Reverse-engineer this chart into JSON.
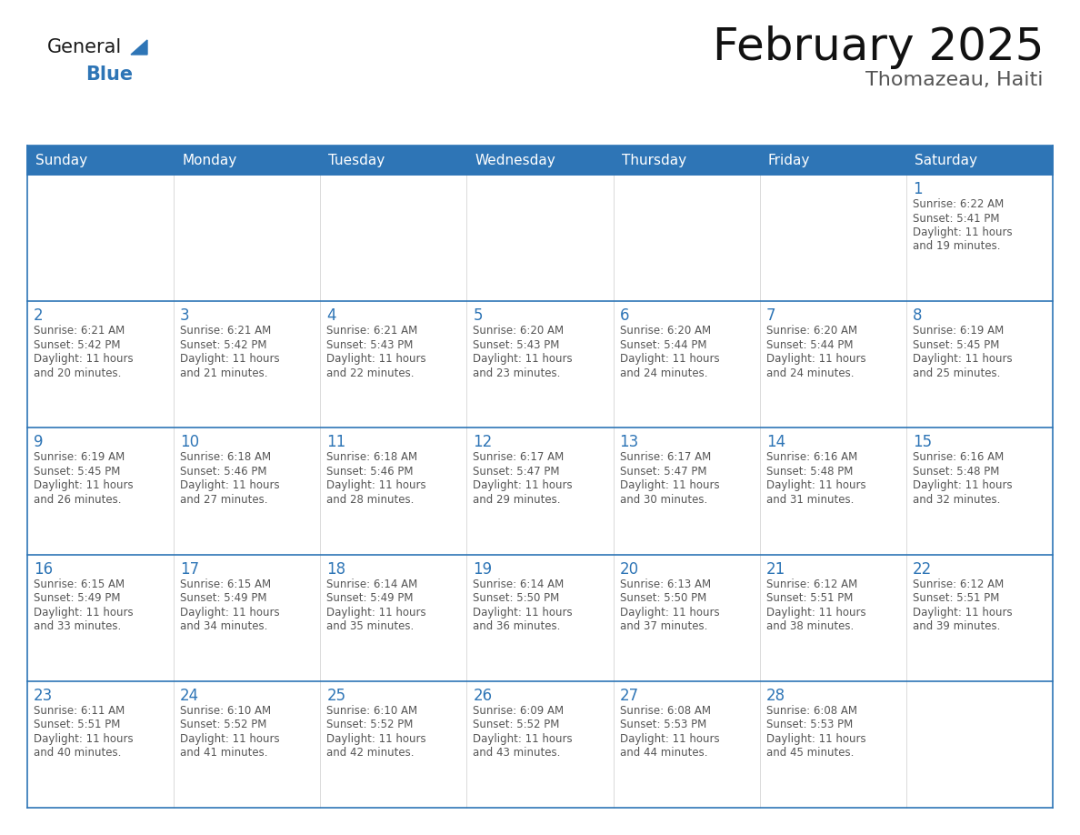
{
  "title": "February 2025",
  "subtitle": "Thomazeau, Haiti",
  "header_color": "#2E75B6",
  "header_text_color": "#FFFFFF",
  "border_color": "#2E75B6",
  "day_number_color": "#2E75B6",
  "info_text_color": "#555555",
  "days_of_week": [
    "Sunday",
    "Monday",
    "Tuesday",
    "Wednesday",
    "Thursday",
    "Friday",
    "Saturday"
  ],
  "logo_general_color": "#1a1a1a",
  "logo_blue_color": "#2E75B6",
  "calendar_data": [
    [
      null,
      null,
      null,
      null,
      null,
      null,
      {
        "day": 1,
        "sunrise": "6:22 AM",
        "sunset": "5:41 PM",
        "daylight_hours": 11,
        "daylight_minutes": 19
      }
    ],
    [
      {
        "day": 2,
        "sunrise": "6:21 AM",
        "sunset": "5:42 PM",
        "daylight_hours": 11,
        "daylight_minutes": 20
      },
      {
        "day": 3,
        "sunrise": "6:21 AM",
        "sunset": "5:42 PM",
        "daylight_hours": 11,
        "daylight_minutes": 21
      },
      {
        "day": 4,
        "sunrise": "6:21 AM",
        "sunset": "5:43 PM",
        "daylight_hours": 11,
        "daylight_minutes": 22
      },
      {
        "day": 5,
        "sunrise": "6:20 AM",
        "sunset": "5:43 PM",
        "daylight_hours": 11,
        "daylight_minutes": 23
      },
      {
        "day": 6,
        "sunrise": "6:20 AM",
        "sunset": "5:44 PM",
        "daylight_hours": 11,
        "daylight_minutes": 24
      },
      {
        "day": 7,
        "sunrise": "6:20 AM",
        "sunset": "5:44 PM",
        "daylight_hours": 11,
        "daylight_minutes": 24
      },
      {
        "day": 8,
        "sunrise": "6:19 AM",
        "sunset": "5:45 PM",
        "daylight_hours": 11,
        "daylight_minutes": 25
      }
    ],
    [
      {
        "day": 9,
        "sunrise": "6:19 AM",
        "sunset": "5:45 PM",
        "daylight_hours": 11,
        "daylight_minutes": 26
      },
      {
        "day": 10,
        "sunrise": "6:18 AM",
        "sunset": "5:46 PM",
        "daylight_hours": 11,
        "daylight_minutes": 27
      },
      {
        "day": 11,
        "sunrise": "6:18 AM",
        "sunset": "5:46 PM",
        "daylight_hours": 11,
        "daylight_minutes": 28
      },
      {
        "day": 12,
        "sunrise": "6:17 AM",
        "sunset": "5:47 PM",
        "daylight_hours": 11,
        "daylight_minutes": 29
      },
      {
        "day": 13,
        "sunrise": "6:17 AM",
        "sunset": "5:47 PM",
        "daylight_hours": 11,
        "daylight_minutes": 30
      },
      {
        "day": 14,
        "sunrise": "6:16 AM",
        "sunset": "5:48 PM",
        "daylight_hours": 11,
        "daylight_minutes": 31
      },
      {
        "day": 15,
        "sunrise": "6:16 AM",
        "sunset": "5:48 PM",
        "daylight_hours": 11,
        "daylight_minutes": 32
      }
    ],
    [
      {
        "day": 16,
        "sunrise": "6:15 AM",
        "sunset": "5:49 PM",
        "daylight_hours": 11,
        "daylight_minutes": 33
      },
      {
        "day": 17,
        "sunrise": "6:15 AM",
        "sunset": "5:49 PM",
        "daylight_hours": 11,
        "daylight_minutes": 34
      },
      {
        "day": 18,
        "sunrise": "6:14 AM",
        "sunset": "5:49 PM",
        "daylight_hours": 11,
        "daylight_minutes": 35
      },
      {
        "day": 19,
        "sunrise": "6:14 AM",
        "sunset": "5:50 PM",
        "daylight_hours": 11,
        "daylight_minutes": 36
      },
      {
        "day": 20,
        "sunrise": "6:13 AM",
        "sunset": "5:50 PM",
        "daylight_hours": 11,
        "daylight_minutes": 37
      },
      {
        "day": 21,
        "sunrise": "6:12 AM",
        "sunset": "5:51 PM",
        "daylight_hours": 11,
        "daylight_minutes": 38
      },
      {
        "day": 22,
        "sunrise": "6:12 AM",
        "sunset": "5:51 PM",
        "daylight_hours": 11,
        "daylight_minutes": 39
      }
    ],
    [
      {
        "day": 23,
        "sunrise": "6:11 AM",
        "sunset": "5:51 PM",
        "daylight_hours": 11,
        "daylight_minutes": 40
      },
      {
        "day": 24,
        "sunrise": "6:10 AM",
        "sunset": "5:52 PM",
        "daylight_hours": 11,
        "daylight_minutes": 41
      },
      {
        "day": 25,
        "sunrise": "6:10 AM",
        "sunset": "5:52 PM",
        "daylight_hours": 11,
        "daylight_minutes": 42
      },
      {
        "day": 26,
        "sunrise": "6:09 AM",
        "sunset": "5:52 PM",
        "daylight_hours": 11,
        "daylight_minutes": 43
      },
      {
        "day": 27,
        "sunrise": "6:08 AM",
        "sunset": "5:53 PM",
        "daylight_hours": 11,
        "daylight_minutes": 44
      },
      {
        "day": 28,
        "sunrise": "6:08 AM",
        "sunset": "5:53 PM",
        "daylight_hours": 11,
        "daylight_minutes": 45
      },
      null
    ]
  ]
}
